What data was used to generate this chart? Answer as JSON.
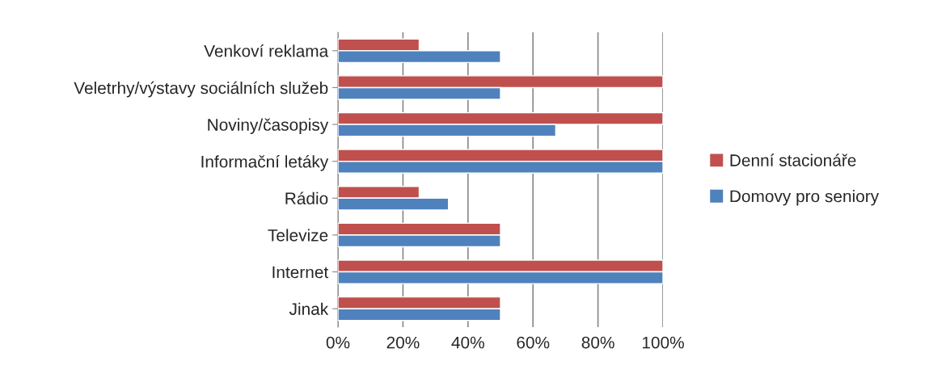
{
  "chart_data": {
    "type": "bar",
    "orientation": "horizontal",
    "categories": [
      "Venkoví reklama",
      "Veletrhy/výstavy sociálních služeb",
      "Noviny/časopisy",
      "Informační letáky",
      "Rádio",
      "Televize",
      "Internet",
      "Jinak"
    ],
    "series": [
      {
        "name": "Denní stacionáře",
        "color": "#c0504d",
        "values": [
          25,
          100,
          100,
          100,
          25,
          50,
          100,
          50
        ]
      },
      {
        "name": "Domovy pro seniory",
        "color": "#4f81bd",
        "values": [
          50,
          50,
          67,
          100,
          34,
          50,
          100,
          50
        ]
      }
    ],
    "xlim": [
      0,
      100
    ],
    "xticks": [
      {
        "value": 0,
        "label": "0%"
      },
      {
        "value": 20,
        "label": "20%"
      },
      {
        "value": 40,
        "label": "40%"
      },
      {
        "value": 60,
        "label": "60%"
      },
      {
        "value": 80,
        "label": "80%"
      },
      {
        "value": 100,
        "label": "100%"
      }
    ],
    "grid": "x",
    "legend": "right"
  }
}
